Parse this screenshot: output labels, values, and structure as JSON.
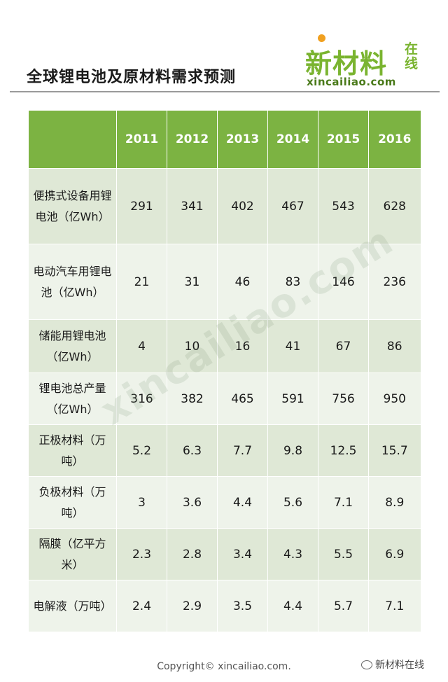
{
  "title": "全球锂电池及原材料需求预测",
  "logo": {
    "main": "新材料",
    "sub": "在线",
    "url": "xincailiao.com"
  },
  "table": {
    "years": [
      "2011",
      "2012",
      "2013",
      "2014",
      "2015",
      "2016"
    ],
    "rows": [
      {
        "label": "便携式设备用锂电池（亿Wh）",
        "values": [
          "291",
          "341",
          "402",
          "467",
          "543",
          "628"
        ]
      },
      {
        "label": "电动汽车用锂电池（亿Wh）",
        "values": [
          "21",
          "31",
          "46",
          "83",
          "146",
          "236"
        ]
      },
      {
        "label": "储能用锂电池（亿Wh）",
        "values": [
          "4",
          "10",
          "16",
          "41",
          "67",
          "86"
        ]
      },
      {
        "label": "锂电池总产量（亿Wh）",
        "values": [
          "316",
          "382",
          "465",
          "591",
          "756",
          "950"
        ]
      },
      {
        "label": "正极材料（万吨）",
        "values": [
          "5.2",
          "6.3",
          "7.7",
          "9.8",
          "12.5",
          "15.7"
        ]
      },
      {
        "label": "负极材料（万吨）",
        "values": [
          "3",
          "3.6",
          "4.4",
          "5.6",
          "7.1",
          "8.9"
        ]
      },
      {
        "label": "隔膜（亿平方米）",
        "values": [
          "2.3",
          "2.8",
          "3.4",
          "4.3",
          "5.5",
          "6.9"
        ]
      },
      {
        "label": "电解液（万吨）",
        "values": [
          "2.4",
          "2.9",
          "3.5",
          "4.4",
          "5.7",
          "7.1"
        ]
      }
    ]
  },
  "watermark": "xincailiao.com",
  "footer": {
    "copyright": "Copyright© xincailiao.com.",
    "wechat": "新材料在线"
  }
}
